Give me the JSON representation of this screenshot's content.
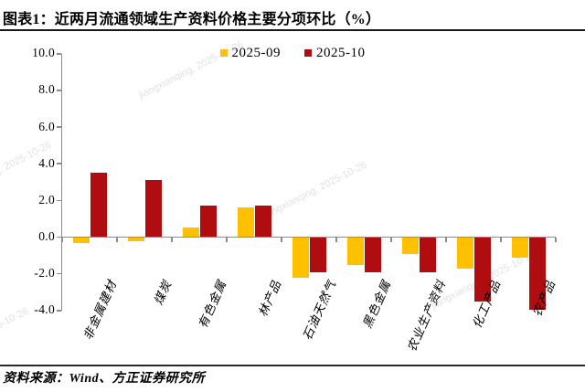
{
  "header": {
    "title": "图表1：近两月流通领域生产资料价格主要分项环比（%）"
  },
  "chart_data": {
    "type": "bar",
    "title": "近两月流通领域生产资料价格主要分项环比（%）",
    "categories": [
      "非金属建材",
      "煤炭",
      "有色金属",
      "林产品",
      "石油天然气",
      "黑色金属",
      "农业生产资料",
      "化工产品",
      "农产品"
    ],
    "series": [
      {
        "name": "2025-09",
        "color": "#FFC000",
        "values": [
          -0.3,
          -0.2,
          0.5,
          1.6,
          -2.2,
          -1.5,
          -0.9,
          -1.7,
          -1.1
        ]
      },
      {
        "name": "2025-10",
        "color": "#AF0D0F",
        "values": [
          3.5,
          3.1,
          1.7,
          1.7,
          -1.9,
          -1.9,
          -1.9,
          -3.5,
          -3.9
        ]
      }
    ],
    "ylim": [
      -4,
      10
    ],
    "yticks": [
      10,
      8,
      6,
      4,
      2,
      0,
      -2,
      -4
    ],
    "ytick_format": "one_decimal",
    "xlabel": "",
    "ylabel": "",
    "grid": false,
    "legend_position": "top-center"
  },
  "watermark": {
    "text": "jiangxianqing, 2025-10-26"
  },
  "footer": {
    "source": "资料来源：Wind、方正证券研究所"
  },
  "colors": {
    "axis": "#8c8c8c",
    "rule": "#1a1a1a",
    "series_2025_09": "#FFC000",
    "series_2025_10": "#AF0D0F"
  }
}
